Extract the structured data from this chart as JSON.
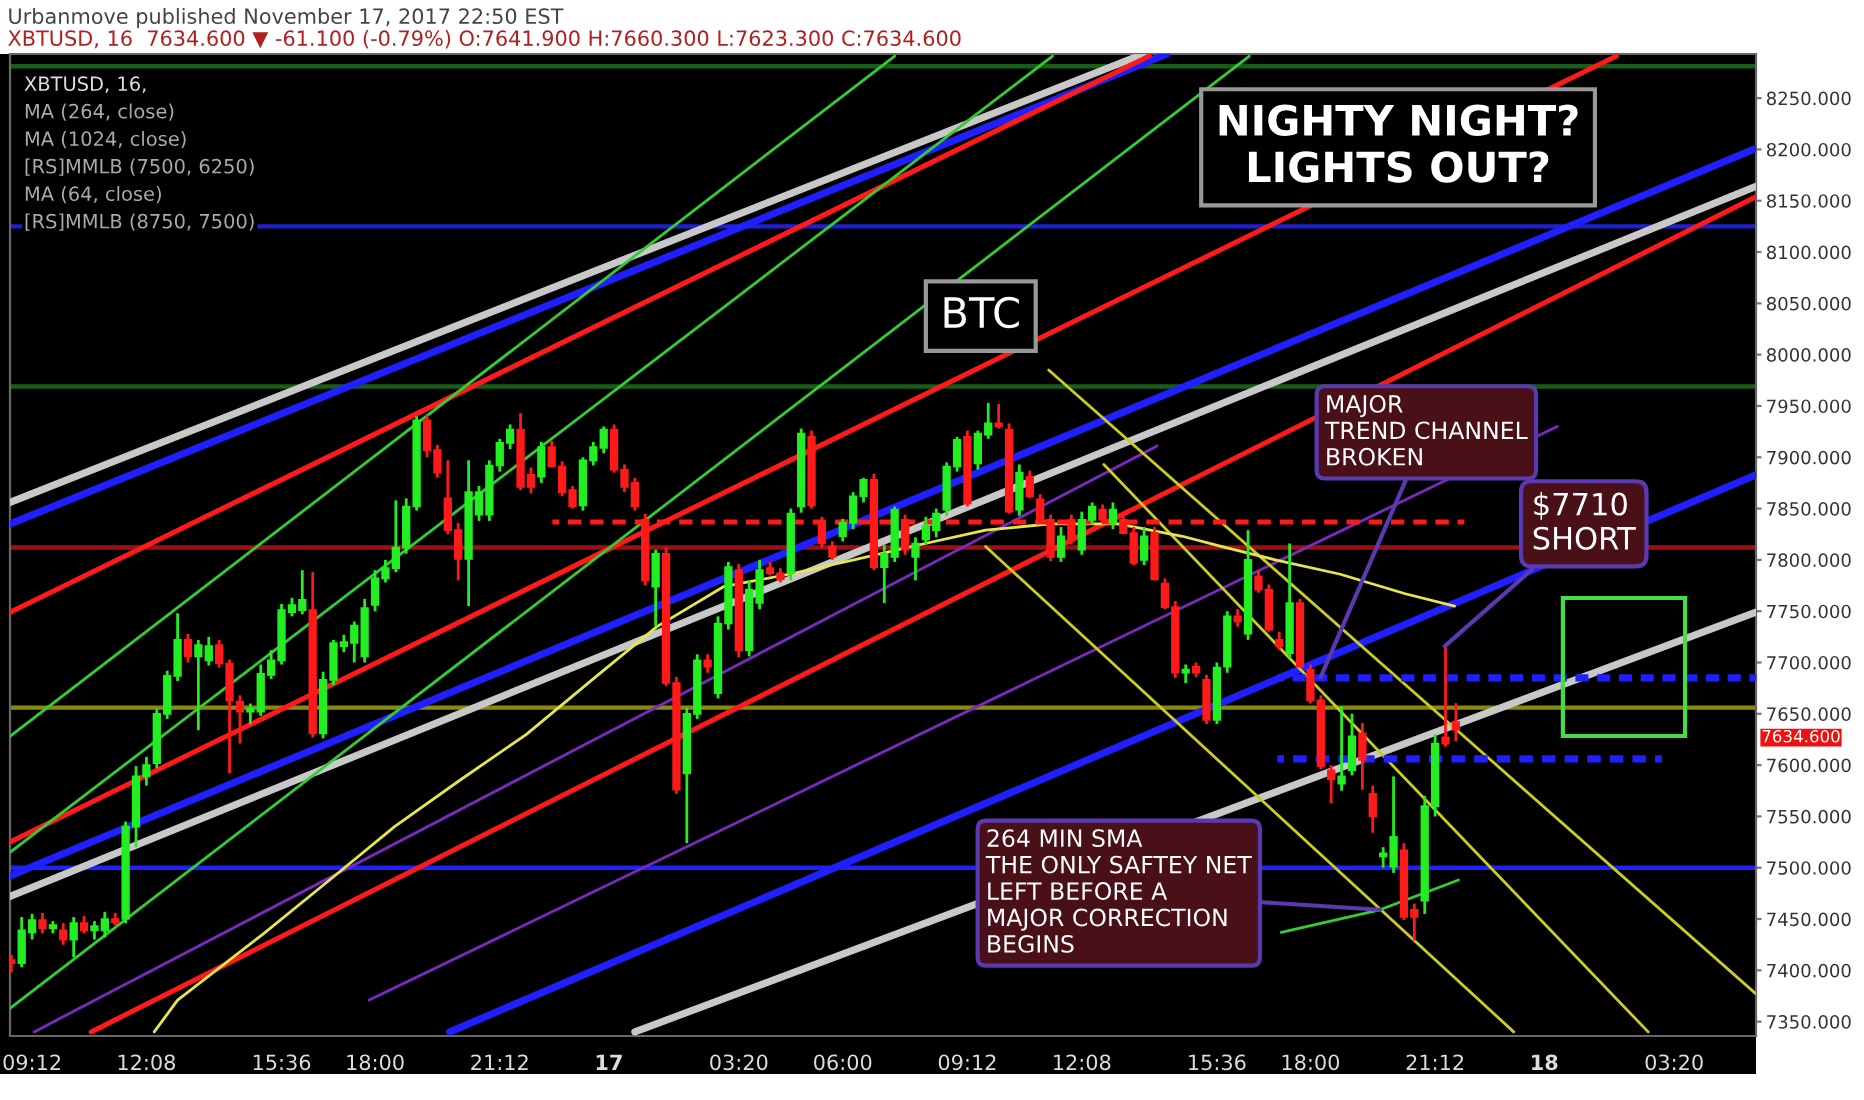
{
  "chart_data": {
    "type": "candlestick",
    "title": "Urbanmove published November 17, 2017 22:50 EST",
    "subtitle": "XBTUSD, 16  7634.600 ▼ -61.100 (-0.79%) O:7641.900 H:7660.300 L:7623.300 C:7634.600",
    "x": [
      "2017-11-16T08:40",
      "2017-11-16T08:56",
      "2017-11-16T09:12",
      "2017-11-16T09:28",
      "2017-11-16T09:44",
      "2017-11-16T10:00",
      "2017-11-16T10:16",
      "2017-11-16T10:32",
      "2017-11-16T10:48",
      "2017-11-16T11:04",
      "2017-11-16T11:20",
      "2017-11-16T11:36",
      "2017-11-16T11:52",
      "2017-11-16T12:08",
      "2017-11-16T12:24",
      "2017-11-16T12:40",
      "2017-11-16T12:56",
      "2017-11-16T13:12",
      "2017-11-16T13:28",
      "2017-11-16T13:44",
      "2017-11-16T14:00",
      "2017-11-16T14:16",
      "2017-11-16T14:32",
      "2017-11-16T14:48",
      "2017-11-16T15:04",
      "2017-11-16T15:20",
      "2017-11-16T15:36",
      "2017-11-16T15:52",
      "2017-11-16T16:08",
      "2017-11-16T16:24",
      "2017-11-16T16:40",
      "2017-11-16T16:56",
      "2017-11-16T17:12",
      "2017-11-16T17:28",
      "2017-11-16T17:44",
      "2017-11-16T18:00",
      "2017-11-16T18:16",
      "2017-11-16T18:32",
      "2017-11-16T18:48",
      "2017-11-16T19:04",
      "2017-11-16T19:20",
      "2017-11-16T19:36",
      "2017-11-16T19:52",
      "2017-11-16T20:08",
      "2017-11-16T20:24",
      "2017-11-16T20:40",
      "2017-11-16T20:56",
      "2017-11-16T21:12",
      "2017-11-16T21:28",
      "2017-11-16T21:44",
      "2017-11-16T22:00",
      "2017-11-16T22:16",
      "2017-11-16T22:32",
      "2017-11-16T22:48",
      "2017-11-16T23:04",
      "2017-11-16T23:20",
      "2017-11-16T23:36",
      "2017-11-16T23:52",
      "2017-11-17T00:08",
      "2017-11-17T00:24",
      "2017-11-17T00:40",
      "2017-11-17T00:56",
      "2017-11-17T01:12",
      "2017-11-17T01:28",
      "2017-11-17T01:44",
      "2017-11-17T02:00",
      "2017-11-17T02:16",
      "2017-11-17T02:32",
      "2017-11-17T02:48",
      "2017-11-17T03:04",
      "2017-11-17T03:20",
      "2017-11-17T03:36",
      "2017-11-17T03:52",
      "2017-11-17T04:08",
      "2017-11-17T04:24",
      "2017-11-17T04:40",
      "2017-11-17T04:56",
      "2017-11-17T05:12",
      "2017-11-17T05:28",
      "2017-11-17T05:44",
      "2017-11-17T06:00",
      "2017-11-17T06:16",
      "2017-11-17T06:32",
      "2017-11-17T06:48",
      "2017-11-17T07:04",
      "2017-11-17T07:20",
      "2017-11-17T07:36",
      "2017-11-17T07:52",
      "2017-11-17T08:08",
      "2017-11-17T08:24",
      "2017-11-17T08:40",
      "2017-11-17T08:56",
      "2017-11-17T09:12",
      "2017-11-17T09:28",
      "2017-11-17T09:44",
      "2017-11-17T10:00",
      "2017-11-17T10:16",
      "2017-11-17T10:32",
      "2017-11-17T10:48",
      "2017-11-17T11:04",
      "2017-11-17T11:20",
      "2017-11-17T11:36",
      "2017-11-17T11:52",
      "2017-11-17T12:08",
      "2017-11-17T12:24",
      "2017-11-17T12:40",
      "2017-11-17T12:56",
      "2017-11-17T13:12",
      "2017-11-17T13:28",
      "2017-11-17T13:44",
      "2017-11-17T14:00",
      "2017-11-17T14:16",
      "2017-11-17T14:32",
      "2017-11-17T14:48",
      "2017-11-17T15:04",
      "2017-11-17T15:20",
      "2017-11-17T15:36",
      "2017-11-17T15:52",
      "2017-11-17T16:08",
      "2017-11-17T16:24",
      "2017-11-17T16:40",
      "2017-11-17T16:56",
      "2017-11-17T17:12",
      "2017-11-17T17:28",
      "2017-11-17T17:44",
      "2017-11-17T18:00",
      "2017-11-17T18:16",
      "2017-11-17T18:32",
      "2017-11-17T18:48",
      "2017-11-17T19:04",
      "2017-11-17T19:20",
      "2017-11-17T19:36",
      "2017-11-17T19:52",
      "2017-11-17T20:08",
      "2017-11-17T20:24",
      "2017-11-17T20:40",
      "2017-11-17T20:56",
      "2017-11-17T21:12",
      "2017-11-17T21:28",
      "2017-11-17T21:44"
    ],
    "ohlc": [
      [
        7410,
        7415,
        7398,
        7407
      ],
      [
        7407,
        7452,
        7403,
        7439
      ],
      [
        7437,
        7455,
        7430,
        7449
      ],
      [
        7449,
        7456,
        7436,
        7441
      ],
      [
        7441,
        7448,
        7436,
        7444
      ],
      [
        7439,
        7446,
        7425,
        7430
      ],
      [
        7430,
        7452,
        7413,
        7446
      ],
      [
        7446,
        7453,
        7436,
        7439
      ],
      [
        7439,
        7448,
        7430,
        7443
      ],
      [
        7439,
        7457,
        7432,
        7450
      ],
      [
        7450,
        7456,
        7444,
        7447
      ],
      [
        7450,
        7545,
        7446,
        7540
      ],
      [
        7540,
        7599,
        7520,
        7589
      ],
      [
        7589,
        7608,
        7580,
        7600
      ],
      [
        7602,
        7655,
        7597,
        7650
      ],
      [
        7650,
        7692,
        7645,
        7687
      ],
      [
        7687,
        7748,
        7682,
        7722
      ],
      [
        7722,
        7728,
        7700,
        7706
      ],
      [
        7706,
        7722,
        7634,
        7717
      ],
      [
        7702,
        7725,
        7697,
        7716
      ],
      [
        7717,
        7722,
        7695,
        7699
      ],
      [
        7699,
        7703,
        7592,
        7663
      ],
      [
        7662,
        7668,
        7621,
        7652
      ],
      [
        7652,
        7660,
        7640,
        7655
      ],
      [
        7652,
        7698,
        7648,
        7689
      ],
      [
        7688,
        7712,
        7684,
        7702
      ],
      [
        7702,
        7757,
        7698,
        7751
      ],
      [
        7749,
        7763,
        7745,
        7756
      ],
      [
        7751,
        7790,
        7747,
        7761
      ],
      [
        7751,
        7788,
        7627,
        7631
      ],
      [
        7631,
        7691,
        7626,
        7683
      ],
      [
        7683,
        7722,
        7678,
        7719
      ],
      [
        7716,
        7727,
        7710,
        7720
      ],
      [
        7719,
        7740,
        7700,
        7736
      ],
      [
        7706,
        7762,
        7700,
        7753
      ],
      [
        7756,
        7790,
        7750,
        7782
      ],
      [
        7782,
        7800,
        7778,
        7792
      ],
      [
        7792,
        7858,
        7788,
        7812
      ],
      [
        7812,
        7860,
        7806,
        7852
      ],
      [
        7852,
        7940,
        7848,
        7936
      ],
      [
        7936,
        7941,
        7900,
        7907
      ],
      [
        7907,
        7912,
        7880,
        7885
      ],
      [
        7860,
        7897,
        7825,
        7829
      ],
      [
        7829,
        7836,
        7780,
        7801
      ],
      [
        7801,
        7897,
        7755,
        7866
      ],
      [
        7844,
        7872,
        7838,
        7866
      ],
      [
        7844,
        7897,
        7838,
        7892
      ],
      [
        7892,
        7918,
        7886,
        7914
      ],
      [
        7914,
        7932,
        7908,
        7927
      ],
      [
        7927,
        7943,
        7868,
        7871
      ],
      [
        7883,
        7890,
        7865,
        7871
      ],
      [
        7881,
        7915,
        7875,
        7910
      ],
      [
        7910,
        7916,
        7890,
        7891
      ],
      [
        7891,
        7896,
        7862,
        7866
      ],
      [
        7868,
        7872,
        7850,
        7852
      ],
      [
        7853,
        7900,
        7848,
        7897
      ],
      [
        7897,
        7915,
        7892,
        7910
      ],
      [
        7909,
        7930,
        7904,
        7927
      ],
      [
        7927,
        7932,
        7885,
        7888
      ],
      [
        7888,
        7893,
        7866,
        7871
      ],
      [
        7875,
        7880,
        7848,
        7852
      ],
      [
        7839,
        7845,
        7775,
        7780
      ],
      [
        7774,
        7810,
        7735,
        7806
      ],
      [
        7806,
        7812,
        7677,
        7680
      ],
      [
        7680,
        7686,
        7572,
        7576
      ],
      [
        7592,
        7656,
        7524,
        7650
      ],
      [
        7650,
        7708,
        7645,
        7702
      ],
      [
        7702,
        7708,
        7690,
        7696
      ],
      [
        7670,
        7745,
        7665,
        7738
      ],
      [
        7738,
        7798,
        7732,
        7793
      ],
      [
        7790,
        7796,
        7705,
        7712
      ],
      [
        7712,
        7780,
        7706,
        7771
      ],
      [
        7758,
        7800,
        7752,
        7790
      ],
      [
        7792,
        7798,
        7785,
        7787
      ],
      [
        7787,
        7792,
        7778,
        7781
      ],
      [
        7787,
        7850,
        7780,
        7845
      ],
      [
        7852,
        7928,
        7846,
        7923
      ],
      [
        7920,
        7926,
        7850,
        7853
      ],
      [
        7836,
        7842,
        7812,
        7816
      ],
      [
        7813,
        7818,
        7800,
        7803
      ],
      [
        7823,
        7840,
        7818,
        7836
      ],
      [
        7836,
        7866,
        7830,
        7862
      ],
      [
        7862,
        7880,
        7856,
        7878
      ],
      [
        7878,
        7884,
        7790,
        7793
      ],
      [
        7793,
        7815,
        7758,
        7806
      ],
      [
        7803,
        7852,
        7798,
        7849
      ],
      [
        7839,
        7844,
        7805,
        7810
      ],
      [
        7803,
        7822,
        7780,
        7816
      ],
      [
        7820,
        7842,
        7815,
        7833
      ],
      [
        7829,
        7850,
        7822,
        7845
      ],
      [
        7849,
        7895,
        7843,
        7891
      ],
      [
        7891,
        7920,
        7886,
        7917
      ],
      [
        7920,
        7926,
        7852,
        7855
      ],
      [
        7894,
        7926,
        7888,
        7923
      ],
      [
        7922,
        7953,
        7918,
        7933
      ],
      [
        7933,
        7952,
        7928,
        7930
      ],
      [
        7927,
        7933,
        7845,
        7847
      ],
      [
        7849,
        7893,
        7843,
        7885
      ],
      [
        7881,
        7887,
        7860,
        7862
      ],
      [
        7859,
        7864,
        7836,
        7839
      ],
      [
        7839,
        7844,
        7799,
        7803
      ],
      [
        7803,
        7832,
        7798,
        7823
      ],
      [
        7839,
        7844,
        7815,
        7820
      ],
      [
        7810,
        7847,
        7805,
        7839
      ],
      [
        7839,
        7856,
        7834,
        7852
      ],
      [
        7849,
        7854,
        7838,
        7839
      ],
      [
        7836,
        7856,
        7830,
        7849
      ],
      [
        7839,
        7846,
        7826,
        7826
      ],
      [
        7826,
        7832,
        7795,
        7797
      ],
      [
        7800,
        7832,
        7795,
        7823
      ],
      [
        7826,
        7832,
        7780,
        7781
      ],
      [
        7777,
        7782,
        7752,
        7754
      ],
      [
        7754,
        7760,
        7685,
        7690
      ],
      [
        7690,
        7698,
        7680,
        7693
      ],
      [
        7696,
        7700,
        7686,
        7690
      ],
      [
        7683,
        7688,
        7640,
        7644
      ],
      [
        7644,
        7700,
        7640,
        7695
      ],
      [
        7696,
        7750,
        7690,
        7745
      ],
      [
        7745,
        7752,
        7735,
        7740
      ],
      [
        7728,
        7829,
        7722,
        7800
      ],
      [
        7784,
        7790,
        7768,
        7771
      ],
      [
        7771,
        7776,
        7730,
        7732
      ],
      [
        7722,
        7730,
        7712,
        7716
      ],
      [
        7709,
        7816,
        7704,
        7758
      ],
      [
        7758,
        7762,
        7695,
        7696
      ],
      [
        7693,
        7698,
        7660,
        7663
      ],
      [
        7663,
        7668,
        7596,
        7599
      ],
      [
        7595,
        7600,
        7563,
        7586
      ],
      [
        7582,
        7657,
        7575,
        7589
      ],
      [
        7595,
        7650,
        7590,
        7628
      ],
      [
        7631,
        7641,
        7576,
        7605
      ],
      [
        7572,
        7580,
        7534,
        7550
      ],
      [
        7511,
        7520,
        7500,
        7514
      ],
      [
        7501,
        7589,
        7495,
        7530
      ],
      [
        7517,
        7524,
        7449,
        7452
      ],
      [
        7459,
        7465,
        7429,
        7452
      ],
      [
        7468,
        7570,
        7455,
        7560
      ],
      [
        7560,
        7630,
        7550,
        7621
      ],
      [
        7627,
        7716,
        7618,
        7621
      ],
      [
        7641.9,
        7660.3,
        7623.3,
        7634.6
      ]
    ],
    "series": [
      {
        "type": "line",
        "color": "#1f1fff",
        "x": [
          "2017-11-16T08:38",
          "2017-11-17T14:19"
        ],
        "values": [
          7835,
          8293
        ]
      },
      {
        "type": "line",
        "color": "#c8c8c8",
        "x": [
          "2017-11-16T08:38",
          "2017-11-17T13:43"
        ],
        "values": [
          7856,
          8293
        ]
      },
      {
        "type": "line",
        "color": "#ff1a1a",
        "x": [
          "2017-11-16T08:38",
          "2017-11-17T13:52"
        ],
        "values": [
          7749,
          8291
        ]
      },
      {
        "type": "line",
        "color": "#ff1a1a",
        "x": [
          "2017-11-16T08:38",
          "2017-11-18T01:51"
        ],
        "values": [
          7525,
          8291
        ]
      },
      {
        "type": "line",
        "color": "#ff1a1a",
        "x": [
          "2017-11-16T10:43",
          "2017-11-18T05:26"
        ],
        "values": [
          7340,
          8154
        ]
      },
      {
        "type": "line",
        "color": "#1f1fff",
        "x": [
          "2017-11-16T08:38",
          "2017-11-18T05:26"
        ],
        "values": [
          7492,
          8201
        ]
      },
      {
        "type": "line",
        "color": "#c8c8c8",
        "x": [
          "2017-11-16T08:38",
          "2017-11-18T05:26"
        ],
        "values": [
          7472,
          8164
        ]
      },
      {
        "type": "line",
        "color": "#1f1fff",
        "x": [
          "2017-11-16T19:55",
          "2017-11-18T05:26"
        ],
        "values": [
          7340,
          7883
        ]
      },
      {
        "type": "line",
        "color": "#c8c8c8",
        "x": [
          "2017-11-17T00:40",
          "2017-11-18T05:26"
        ],
        "values": [
          7340,
          7749
        ]
      },
      {
        "type": "line",
        "color": "#33cc33",
        "x": [
          "2017-11-16T08:38",
          "2017-11-17T07:20"
        ],
        "values": [
          7628,
          8291
        ]
      },
      {
        "type": "line",
        "color": "#33cc33",
        "x": [
          "2017-11-16T08:38",
          "2017-11-17T11:23"
        ],
        "values": [
          7515,
          8291
        ]
      },
      {
        "type": "line",
        "color": "#33cc33",
        "x": [
          "2017-11-16T08:38",
          "2017-11-17T16:26"
        ],
        "values": [
          7363,
          8291
        ]
      },
      {
        "type": "line",
        "color": "#7a2ac0",
        "x": [
          "2017-11-16T09:15",
          "2017-11-17T14:04"
        ],
        "values": [
          7340,
          7911
        ]
      },
      {
        "type": "line",
        "color": "#7a2ac0",
        "x": [
          "2017-11-16T17:51",
          "2017-11-18T00:20"
        ],
        "values": [
          7371,
          7930
        ]
      },
      {
        "type": "line",
        "color": "#cccc22",
        "x": [
          "2017-11-17T11:17",
          "2017-11-18T05:26"
        ],
        "values": [
          7985,
          7377
        ]
      },
      {
        "type": "line",
        "color": "#cccc22",
        "x": [
          "2017-11-17T09:40",
          "2017-11-17T23:13"
        ],
        "values": [
          7813,
          7340
        ]
      },
      {
        "type": "line",
        "color": "#cccc22",
        "x": [
          "2017-11-17T12:42",
          "2017-11-18T02:40"
        ],
        "values": [
          7893,
          7340
        ]
      },
      {
        "type": "line",
        "color": "#e6e64c",
        "x": [
          "2017-11-16T12:20",
          "2017-11-16T12:56",
          "2017-11-16T15:07",
          "2017-11-16T16:50",
          "2017-11-16T18:30",
          "2017-11-16T20:10",
          "2017-11-16T21:53",
          "2017-11-16T23:34",
          "2017-11-17T01:14",
          "2017-11-17T02:57",
          "2017-11-17T04:37",
          "2017-11-17T06:17",
          "2017-11-17T08:00",
          "2017-11-17T09:40",
          "2017-11-17T11:20",
          "2017-11-17T13:04",
          "2017-11-17T14:43",
          "2017-11-17T15:44",
          "2017-11-17T17:06",
          "2017-11-17T18:46",
          "2017-11-17T20:26",
          "2017-11-17T21:42"
        ],
        "values": [
          7340,
          7371,
          7435,
          7488,
          7540,
          7585,
          7630,
          7683,
          7735,
          7774,
          7786,
          7800,
          7815,
          7829,
          7835,
          7835,
          7823,
          7813,
          7800,
          7786,
          7767,
          7755
        ]
      },
      {
        "type": "line",
        "color": "#33cc33",
        "x": [
          "2017-11-17T17:15",
          "2017-11-17T19:47",
          "2017-11-17T21:48"
        ],
        "values": [
          7437,
          7459,
          7488
        ]
      },
      {
        "type": "line",
        "color": "#ff1a1a",
        "line_style": "dashed",
        "x": [
          "2017-11-16T22:33",
          "2017-11-17T21:57"
        ],
        "values": [
          7837,
          7837
        ]
      },
      {
        "type": "line",
        "color": "#1f1fff",
        "line_style": "dashed",
        "x": [
          "2017-11-17T17:09",
          "2017-11-18T05:26"
        ],
        "values": [
          7685,
          7685
        ]
      },
      {
        "type": "line",
        "color": "#1f1fff",
        "line_style": "dashed",
        "x": [
          "2017-11-17T17:09",
          "2017-11-18T03:01"
        ],
        "values": [
          7606,
          7606
        ]
      }
    ],
    "ref_lines": [
      {
        "axis": "y",
        "value": 7500,
        "color": "#1f1fff"
      },
      {
        "axis": "y",
        "value": 7656,
        "color": "#8a8a10"
      },
      {
        "axis": "y",
        "value": 7812,
        "color": "#a01010"
      },
      {
        "axis": "y",
        "value": 7969,
        "color": "#1a5c1a"
      },
      {
        "axis": "y",
        "value": 8125,
        "color": "#2020d0"
      },
      {
        "axis": "y",
        "value": 8281,
        "color": "#1a5c1a"
      }
    ],
    "annotations": [
      "XBTUSD, 16,",
      "MA (264, close)",
      "MA (1024, close)",
      "[RS]MMLB (7500, 6250)",
      "MA (64, close)",
      "[RS]MMLB (8750, 7500)",
      "BTC",
      "NIGHTY NIGHT?\nLIGHTS OUT?",
      {
        "text": "MAJOR\nTREND CHANNEL\nBROKEN",
        "x": "2017-11-17T18:16",
        "y": 7686
      },
      {
        "text": "$7710\nSHORT",
        "x": "2017-11-17T21:27",
        "y": 7716
      },
      {
        "text": "264 MIN SMA\nTHE ONLY SAFTEY NET\nLEFT BEFORE A\nMAJOR CORRECTION\nBEGINS",
        "x": "2017-11-17T19:47",
        "y": 7459
      },
      "7634.600"
    ],
    "xlim": [
      "2017-11-16T08:38",
      "2017-11-18T05:26"
    ],
    "ylim": [
      7336,
      8293
    ],
    "xticks": [
      {
        "value": "2017-11-16T09:12",
        "label": "09:12"
      },
      {
        "value": "2017-11-16T12:08",
        "label": "12:08"
      },
      {
        "value": "2017-11-16T15:36",
        "label": "15:36"
      },
      {
        "value": "2017-11-16T18:00",
        "label": "18:00"
      },
      {
        "value": "2017-11-16T21:12",
        "label": "21:12"
      },
      {
        "value": "2017-11-17T00:00",
        "label": "17"
      },
      {
        "value": "2017-11-17T03:20",
        "label": "03:20"
      },
      {
        "value": "2017-11-17T06:00",
        "label": "06:00"
      },
      {
        "value": "2017-11-17T09:12",
        "label": "09:12"
      },
      {
        "value": "2017-11-17T12:08",
        "label": "12:08"
      },
      {
        "value": "2017-11-17T15:36",
        "label": "15:36"
      },
      {
        "value": "2017-11-17T18:00",
        "label": "18:00"
      },
      {
        "value": "2017-11-17T21:12",
        "label": "21:12"
      },
      {
        "value": "2017-11-18T00:00",
        "label": "18"
      },
      {
        "value": "2017-11-18T03:20",
        "label": "03:20"
      }
    ],
    "yticks": [
      {
        "value": 7350,
        "label": "7350.000"
      },
      {
        "value": 7400,
        "label": "7400.000"
      },
      {
        "value": 7450,
        "label": "7450.000"
      },
      {
        "value": 7500,
        "label": "7500.000"
      },
      {
        "value": 7550,
        "label": "7550.000"
      },
      {
        "value": 7600,
        "label": "7600.000"
      },
      {
        "value": 7650,
        "label": "7650.000"
      },
      {
        "value": 7700,
        "label": "7700.000"
      },
      {
        "value": 7750,
        "label": "7750.000"
      },
      {
        "value": 7800,
        "label": "7800.000"
      },
      {
        "value": 7850,
        "label": "7850.000"
      },
      {
        "value": 7900,
        "label": "7900.000"
      },
      {
        "value": 7950,
        "label": "7950.000"
      },
      {
        "value": 8000,
        "label": "8000.000"
      },
      {
        "value": 8050,
        "label": "8050.000"
      },
      {
        "value": 8100,
        "label": "8100.000"
      },
      {
        "value": 8150,
        "label": "8150.000"
      },
      {
        "value": 8200,
        "label": "8200.000"
      },
      {
        "value": 8250,
        "label": "8250.000"
      }
    ]
  }
}
